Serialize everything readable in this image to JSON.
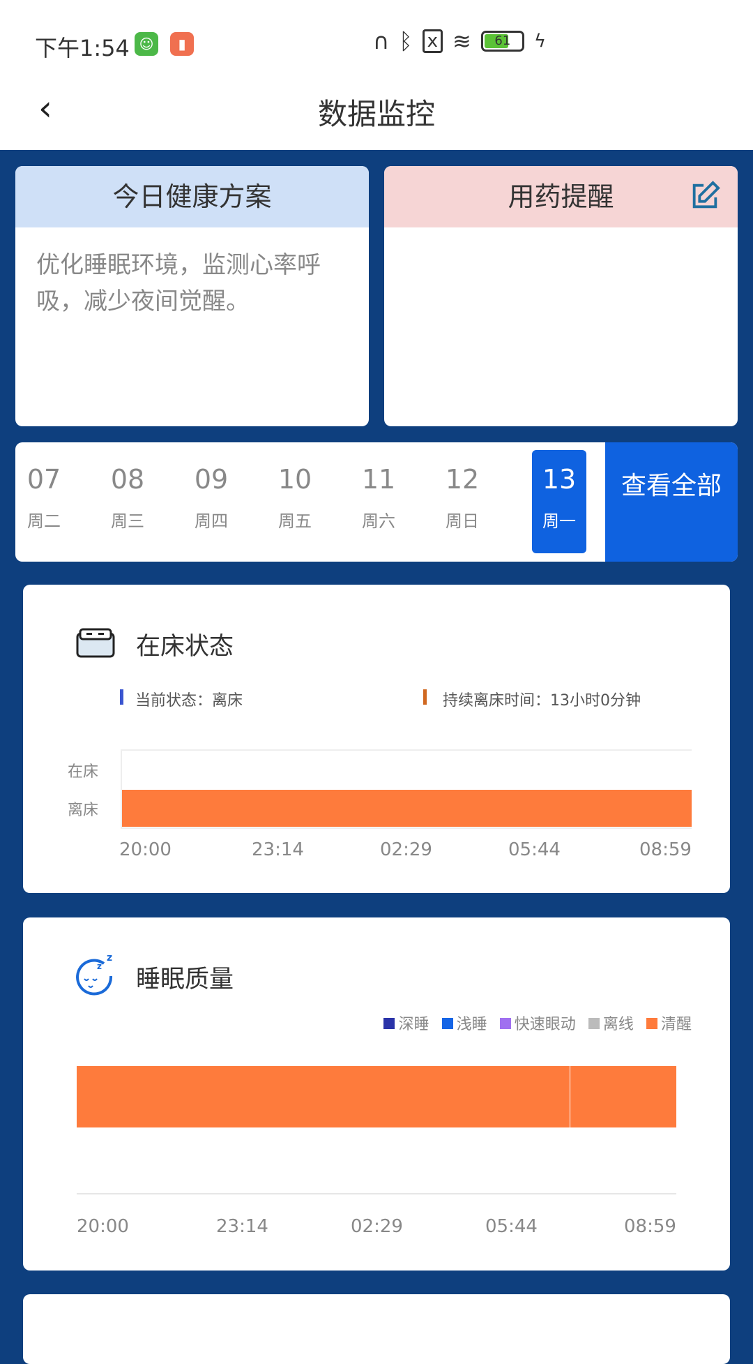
{
  "status_bar": {
    "time": "下午1:54",
    "battery": "61",
    "battery_level": 0.61
  },
  "header": {
    "title": "数据监控",
    "back_icon": "chevron-left-icon"
  },
  "plan_card": {
    "title": "今日健康方案",
    "text": "优化睡眠环境，监测心率呼吸，减少夜间觉醒。",
    "bg": "#cfe0f7"
  },
  "medicine_card": {
    "title": "用药提醒",
    "bg": "#f6d5d5",
    "edit_icon": "edit-icon"
  },
  "dates": [
    {
      "day": "07",
      "week": "周二"
    },
    {
      "day": "08",
      "week": "周三"
    },
    {
      "day": "09",
      "week": "周四"
    },
    {
      "day": "10",
      "week": "周五"
    },
    {
      "day": "11",
      "week": "周六"
    },
    {
      "day": "12",
      "week": "周日"
    },
    {
      "day": "13",
      "week": "周一",
      "selected": true
    }
  ],
  "view_all": "查看全部",
  "bed_status": {
    "title": "在床状态",
    "current": "当前状态：离床",
    "duration": "持续离床时间：13小时0分钟",
    "y_labels": [
      "在床",
      "离床"
    ],
    "x_labels": [
      "20:00",
      "23:14",
      "02:29",
      "05:44",
      "08:59"
    ],
    "bar_color": "#fe7b3c"
  },
  "sleep_quality": {
    "title": "睡眠质量",
    "legend": [
      {
        "label": "深睡",
        "color": "#2a33a8"
      },
      {
        "label": "浅睡",
        "color": "#1565e6"
      },
      {
        "label": "快速眼动",
        "color": "#a070f0"
      },
      {
        "label": "离线",
        "color": "#bbbbbb"
      },
      {
        "label": "清醒",
        "color": "#fe7b3c"
      }
    ],
    "x_labels": [
      "20:00",
      "23:14",
      "02:29",
      "05:44",
      "08:59"
    ]
  }
}
